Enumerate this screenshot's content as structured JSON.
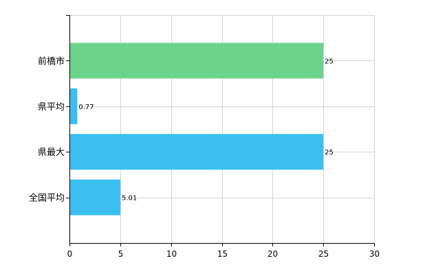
{
  "chart_data": {
    "type": "bar",
    "orientation": "horizontal",
    "title": "",
    "xlabel": "",
    "ylabel": "",
    "categories": [
      "前橋市",
      "県平均",
      "県最大",
      "全国平均"
    ],
    "values": [
      25,
      0.77,
      25,
      5.01
    ],
    "data_labels": [
      "25",
      "0.77",
      "25",
      "5.01"
    ],
    "bar_colors": [
      "#6dd38c",
      "#3bbff0",
      "#3bbff0",
      "#3bbff0"
    ],
    "xlim": [
      0,
      30
    ],
    "xticks": [
      0,
      5,
      10,
      15,
      20,
      25,
      30
    ],
    "grid": true,
    "legend": "none"
  }
}
